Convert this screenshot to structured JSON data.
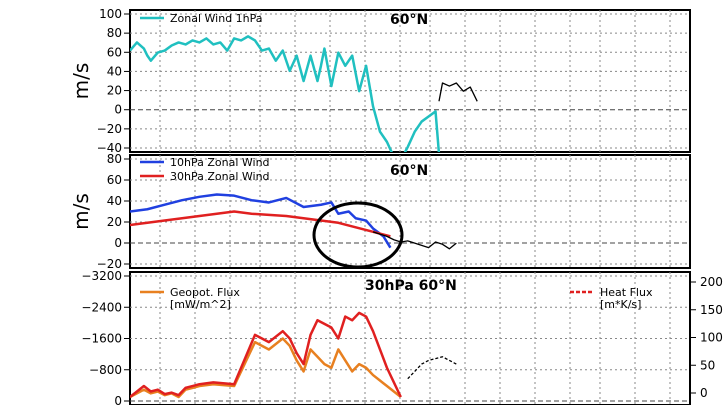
{
  "chart_data": [
    {
      "type": "line",
      "title": "60°N",
      "ylabel": "m/s",
      "ylim": [
        -40,
        100
      ],
      "yticks": [
        100,
        80,
        60,
        40,
        20,
        0,
        -20,
        -40
      ],
      "xlim": [
        0,
        100
      ],
      "grid": true,
      "legend_position": "top-left",
      "series": [
        {
          "name": "Zonal Wind 1hPa",
          "color": "#20c0c0",
          "x": [
            0,
            2,
            4,
            5,
            6,
            8,
            10,
            12,
            14,
            16,
            18,
            20,
            22,
            24,
            26,
            28,
            30,
            32,
            34,
            36,
            38,
            40,
            42,
            44,
            46,
            48,
            50,
            52,
            54,
            55,
            56,
            58,
            60,
            62,
            64,
            66,
            68,
            70,
            72,
            74,
            76,
            78,
            80,
            82,
            84,
            86,
            88,
            89
          ],
          "values": [
            60,
            68,
            62,
            55,
            50,
            58,
            60,
            65,
            68,
            66,
            70,
            68,
            72,
            66,
            68,
            60,
            72,
            70,
            74,
            70,
            60,
            62,
            50,
            60,
            40,
            55,
            30,
            55,
            30,
            45,
            62,
            25,
            58,
            45,
            55,
            20,
            45,
            5,
            -20,
            -30,
            -45,
            -48,
            -35,
            -20,
            -10,
            -5,
            0,
            -42
          ]
        },
        {
          "name": "",
          "color": "#000000",
          "x": [
            89,
            90,
            92,
            94,
            96,
            98,
            100
          ],
          "values": [
            10,
            28,
            25,
            28,
            20,
            24,
            10
          ]
        }
      ]
    },
    {
      "type": "line",
      "title": "60°N",
      "ylabel": "m/s",
      "ylim": [
        -20,
        80
      ],
      "yticks": [
        80,
        60,
        40,
        20,
        0,
        -20
      ],
      "grid": true,
      "legend_position": "top-left",
      "series": [
        {
          "name": "10hPa Zonal Wind",
          "color": "#2040e0",
          "x": [
            0,
            5,
            10,
            15,
            20,
            25,
            30,
            35,
            40,
            45,
            50,
            55,
            58,
            60,
            63,
            65,
            68,
            70,
            73,
            75
          ],
          "values": [
            30,
            32,
            36,
            40,
            43,
            45,
            44,
            40,
            38,
            42,
            34,
            36,
            38,
            28,
            30,
            24,
            22,
            15,
            8,
            -2
          ]
        },
        {
          "name": "30hPa Zonal Wind",
          "color": "#e02020",
          "x": [
            0,
            5,
            10,
            15,
            20,
            25,
            30,
            35,
            40,
            45,
            50,
            55,
            60,
            65,
            70,
            75
          ],
          "values": [
            18,
            20,
            22,
            24,
            26,
            28,
            30,
            28,
            27,
            26,
            24,
            22,
            20,
            16,
            12,
            8
          ]
        },
        {
          "name": "",
          "color": "#000000",
          "x": [
            70,
            72,
            74,
            76,
            78,
            80,
            82,
            84,
            86,
            88,
            90,
            92,
            94
          ],
          "values": [
            12,
            10,
            8,
            5,
            3,
            4,
            2,
            0,
            -2,
            3,
            1,
            -3,
            2
          ]
        }
      ]
    },
    {
      "type": "line",
      "title": "30hPa 60°N",
      "ylim": [
        0,
        3200
      ],
      "yticks": [
        -3200,
        -2400,
        -1600,
        -800,
        0
      ],
      "y2ticks": [
        200,
        150,
        100,
        50,
        0
      ],
      "grid": true,
      "legend_position": "top-left",
      "series": [
        {
          "name": "Geopot. Flux\n[mW/m^2]",
          "color": "#e88020",
          "x": [
            0,
            4,
            6,
            8,
            10,
            12,
            14,
            16,
            18,
            20,
            24,
            30,
            36,
            40,
            44,
            46,
            48,
            50,
            52,
            54,
            56,
            58,
            60,
            62,
            64,
            66,
            68,
            70,
            74,
            78
          ],
          "values": [
            0,
            200,
            100,
            150,
            50,
            100,
            0,
            200,
            250,
            300,
            350,
            300,
            1500,
            1300,
            1600,
            1400,
            1000,
            700,
            1300,
            1100,
            900,
            800,
            1300,
            1000,
            700,
            900,
            800,
            600,
            300,
            0
          ]
        },
        {
          "name": "Heat Flux\n[m*K/s]",
          "color": "#e02020",
          "x": [
            0,
            4,
            6,
            8,
            10,
            12,
            14,
            16,
            18,
            20,
            24,
            30,
            36,
            40,
            44,
            46,
            48,
            50,
            52,
            54,
            56,
            58,
            60,
            62,
            64,
            66,
            68,
            70,
            74,
            78
          ],
          "values": [
            0,
            300,
            150,
            200,
            80,
            120,
            50,
            250,
            300,
            350,
            400,
            350,
            1700,
            1500,
            1800,
            1600,
            1200,
            900,
            1700,
            2100,
            2000,
            1900,
            1600,
            2200,
            2100,
            2300,
            2200,
            1800,
            800,
            0
          ]
        },
        {
          "name": "",
          "color": "#000000",
          "x": [
            80,
            82,
            84,
            86,
            88,
            90,
            92,
            94
          ],
          "values": [
            500,
            700,
            900,
            1000,
            1050,
            1100,
            1000,
            900
          ]
        }
      ]
    }
  ]
}
